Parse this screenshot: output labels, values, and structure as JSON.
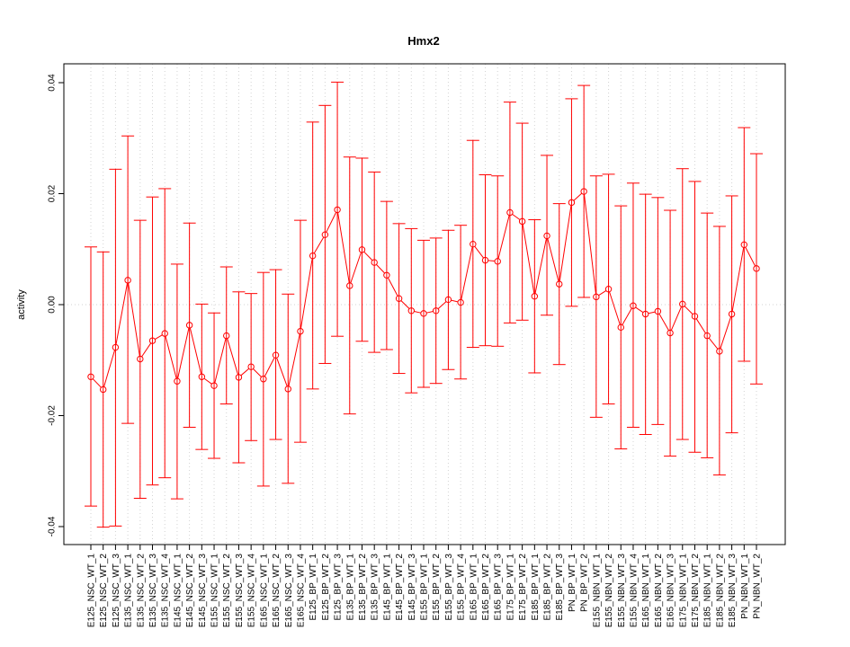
{
  "chart_data": {
    "type": "line",
    "title": "Hmx2",
    "ylabel": "activity",
    "xlabel": "",
    "ylim": [
      -0.043,
      0.044
    ],
    "yticks": [
      -0.04,
      -0.02,
      0.0,
      0.02,
      0.04
    ],
    "ytick_labels": [
      "-0.04",
      "-0.02",
      "0.00",
      "0.02",
      "0.04"
    ],
    "grid": true,
    "colors": {
      "series": "#ff0000",
      "grid": "#d3d3d3",
      "frame": "#000000"
    },
    "categories": [
      "E125_NSC_WT_1",
      "E125_NSC_WT_2",
      "E125_NSC_WT_3",
      "E135_NSC_WT_1",
      "E135_NSC_WT_2",
      "E135_NSC_WT_3",
      "E135_NSC_WT_4",
      "E145_NSC_WT_1",
      "E145_NSC_WT_2",
      "E145_NSC_WT_3",
      "E155_NSC_WT_1",
      "E155_NSC_WT_2",
      "E155_NSC_WT_3",
      "E155_NSC_WT_4",
      "E165_NSC_WT_1",
      "E165_NSC_WT_2",
      "E165_NSC_WT_3",
      "E165_NSC_WT_4",
      "E125_BP_WT_1",
      "E125_BP_WT_2",
      "E125_BP_WT_3",
      "E135_BP_WT_1",
      "E135_BP_WT_2",
      "E135_BP_WT_3",
      "E145_BP_WT_1",
      "E145_BP_WT_2",
      "E145_BP_WT_3",
      "E155_BP_WT_1",
      "E155_BP_WT_2",
      "E155_BP_WT_3",
      "E155_BP_WT_4",
      "E165_BP_WT_1",
      "E165_BP_WT_2",
      "E165_BP_WT_3",
      "E175_BP_WT_1",
      "E175_BP_WT_2",
      "E185_BP_WT_1",
      "E185_BP_WT_2",
      "E185_BP_WT_3",
      "PN_BP_WT_1",
      "PN_BP_WT_2",
      "E155_NBN_WT_1",
      "E155_NBN_WT_2",
      "E155_NBN_WT_3",
      "E155_NBN_WT_4",
      "E165_NBN_WT_1",
      "E165_NBN_WT_2",
      "E165_NBN_WT_3",
      "E175_NBN_WT_1",
      "E175_NBN_WT_2",
      "E185_NBN_WT_1",
      "E185_NBN_WT_2",
      "E185_NBN_WT_3",
      "PN_NBN_WT_1",
      "PN_NBN_WT_2"
    ],
    "values": [
      -0.013,
      -0.0153,
      -0.0077,
      0.0044,
      -0.0098,
      -0.0065,
      -0.0052,
      -0.0138,
      -0.0037,
      -0.013,
      -0.0146,
      -0.0056,
      -0.0131,
      -0.0112,
      -0.0134,
      -0.0091,
      -0.0152,
      -0.0048,
      0.0088,
      0.0126,
      0.0171,
      0.0034,
      0.0099,
      0.0076,
      0.0053,
      0.0011,
      -0.0011,
      -0.0016,
      -0.0011,
      0.0009,
      0.0004,
      0.0109,
      0.008,
      0.0078,
      0.0166,
      0.015,
      0.0015,
      0.0124,
      0.0037,
      0.0184,
      0.0204,
      0.0014,
      0.0028,
      -0.0041,
      -0.0002,
      -0.0017,
      -0.0012,
      -0.0051,
      0.0001,
      -0.0021,
      -0.0056,
      -0.0084,
      -0.0017,
      0.0108,
      0.0065
    ],
    "upper": [
      0.0104,
      0.0095,
      0.0244,
      0.0304,
      0.0152,
      0.0194,
      0.0209,
      0.0073,
      0.0147,
      0.0001,
      -0.0015,
      0.0068,
      0.0023,
      0.002,
      0.0058,
      0.0063,
      0.0019,
      0.0152,
      0.0329,
      0.0359,
      0.0401,
      0.0266,
      0.0264,
      0.0239,
      0.0186,
      0.0146,
      0.0137,
      0.0116,
      0.012,
      0.0134,
      0.0143,
      0.0296,
      0.0234,
      0.0232,
      0.0365,
      0.0327,
      0.0153,
      0.0269,
      0.0182,
      0.0371,
      0.0395,
      0.0232,
      0.0235,
      0.0178,
      0.0219,
      0.0199,
      0.0193,
      0.017,
      0.0245,
      0.0222,
      0.0165,
      0.0141,
      0.0196,
      0.0319,
      0.0272
    ],
    "lower": [
      -0.0363,
      -0.0401,
      -0.0399,
      -0.0214,
      -0.0349,
      -0.0325,
      -0.0312,
      -0.035,
      -0.0221,
      -0.0261,
      -0.0277,
      -0.0179,
      -0.0285,
      -0.0245,
      -0.0327,
      -0.0243,
      -0.0322,
      -0.0248,
      -0.0152,
      -0.0106,
      -0.0057,
      -0.0197,
      -0.0066,
      -0.0086,
      -0.0081,
      -0.0124,
      -0.0159,
      -0.0149,
      -0.0142,
      -0.0117,
      -0.0134,
      -0.0077,
      -0.0074,
      -0.0075,
      -0.0033,
      -0.0028,
      -0.0123,
      -0.0019,
      -0.0108,
      -0.0003,
      0.0013,
      -0.0203,
      -0.0179,
      -0.026,
      -0.0221,
      -0.0234,
      -0.0216,
      -0.0273,
      -0.0243,
      -0.0266,
      -0.0276,
      -0.0307,
      -0.0231,
      -0.0102,
      -0.0143
    ]
  }
}
